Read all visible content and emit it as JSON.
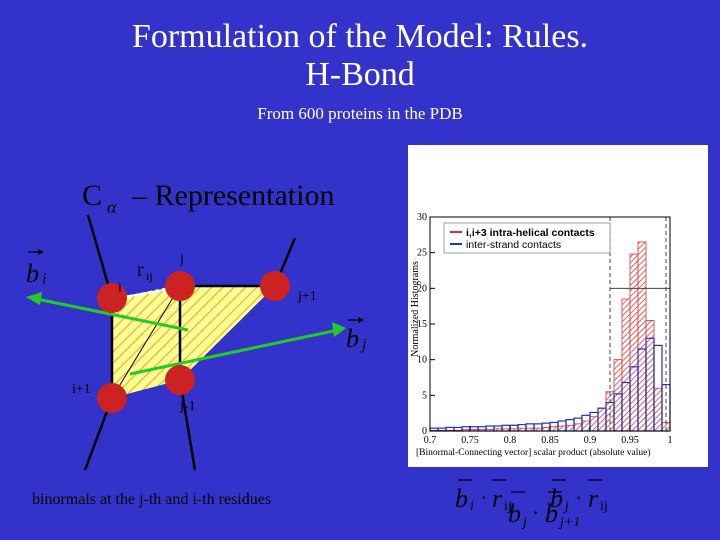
{
  "title_line1": "Formulation of the Model: Rules.",
  "title_line2": "H-Bond",
  "subtitle": "From 600 proteins in the PDB",
  "diagram": {
    "representation_prefix": "C",
    "representation_sub": "α",
    "representation_text": "– Representation",
    "bi_label": "b",
    "bi_sub": "i",
    "bj_label": "b",
    "bj_sub": "j",
    "rij_label": "r",
    "rij_sub": "ij",
    "node_i": "i",
    "node_j": "j",
    "node_i_plus_1": "i+1",
    "node_j_plus_1": "j+1",
    "node_j_minus_1": "j-1",
    "caption": "binormals  at the j-th and i-th residues"
  },
  "formula": {
    "b": "b",
    "r": "r",
    "dot": "·",
    "i": "i",
    "j": "j",
    "ij": "ij",
    "j_plus_1": "j+1"
  },
  "chart_data": {
    "type": "bar",
    "ylabel": "Normalized Histograms",
    "xlabel": "[Binormal-Connecting vector] scalar product (absolute value)",
    "xlim": [
      0.7,
      1.0
    ],
    "ylim": [
      0,
      30
    ],
    "x_ticks": [
      "0.7",
      "0.75",
      "0.8",
      "0.85",
      "0.9",
      "0.95",
      "1"
    ],
    "y_ticks": [
      "0",
      "5",
      "10",
      "15",
      "20",
      "25",
      "30"
    ],
    "bin_width": 0.01,
    "bin_starts": [
      0.7,
      0.71,
      0.72,
      0.73,
      0.74,
      0.75,
      0.76,
      0.77,
      0.78,
      0.79,
      0.8,
      0.81,
      0.82,
      0.83,
      0.84,
      0.85,
      0.86,
      0.87,
      0.88,
      0.89,
      0.9,
      0.91,
      0.92,
      0.93,
      0.94,
      0.95,
      0.96,
      0.97,
      0.98,
      0.99
    ],
    "series": [
      {
        "name": "i,i+3 intra-helical contacts",
        "color": "#e03030",
        "values": [
          0.1,
          0.1,
          0.1,
          0.1,
          0.2,
          0.2,
          0.2,
          0.2,
          0.3,
          0.3,
          0.3,
          0.4,
          0.4,
          0.4,
          0.5,
          0.6,
          0.7,
          0.8,
          1.0,
          1.4,
          2.0,
          3.2,
          5.5,
          10.0,
          18.5,
          24.8,
          26.5,
          15.5,
          6.0,
          1.2
        ]
      },
      {
        "name": "inter-strand contacts",
        "color": "#2030c0",
        "values": [
          0.4,
          0.4,
          0.5,
          0.5,
          0.6,
          0.6,
          0.6,
          0.7,
          0.7,
          0.8,
          0.8,
          0.9,
          1.0,
          1.0,
          1.1,
          1.2,
          1.4,
          1.6,
          1.8,
          2.2,
          2.6,
          3.2,
          4.0,
          5.2,
          6.8,
          9.0,
          11.5,
          13.0,
          12.0,
          6.5
        ]
      }
    ],
    "vertical_lines": [
      0.925,
      0.995
    ],
    "horizontal_line": 20,
    "legend_position": "top-right"
  }
}
